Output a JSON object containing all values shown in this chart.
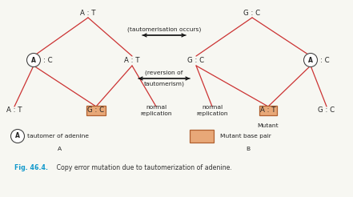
{
  "bg_color": "#f7f7f2",
  "line_color": "#cc3333",
  "arrow_color": "#111111",
  "box_fill": "#e8a878",
  "box_edge": "#b06030",
  "circle_color": "#ffffff",
  "circle_edge": "#444444",
  "fig_title": "Fig. 46.4.",
  "fig_title_color": "#1199cc",
  "fig_caption": " Copy error mutation due to tautomerization of adenine.",
  "caption_color": "#333333",
  "text_color": "#222222",
  "taut_label": "(tautomerisation occurs)",
  "rev_label1": "(reversion of",
  "rev_label2": "tautomerism)",
  "normal_rep": "normal\nreplication",
  "mutant_label": "Mutant"
}
